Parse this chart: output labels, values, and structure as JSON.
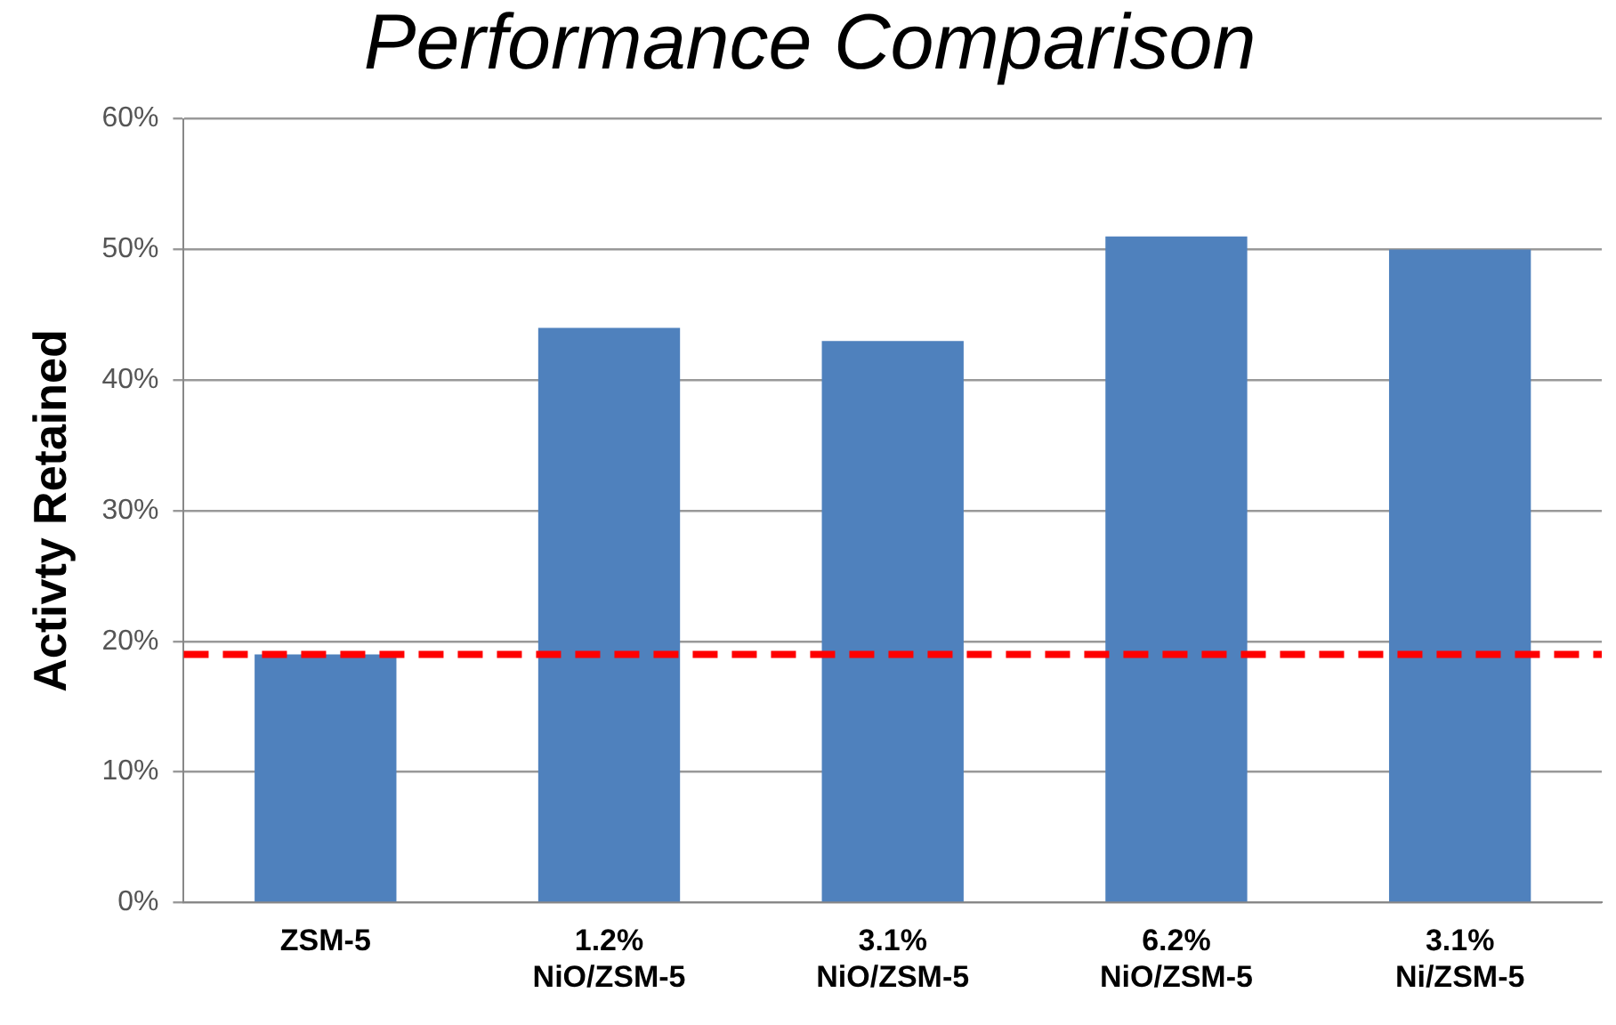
{
  "chart_data": {
    "type": "bar",
    "title": "Performance Comparison",
    "ylabel": "Activty Retained",
    "categories": [
      "ZSM-5",
      "1.2%\nNiO/ZSM-5",
      "3.1%\nNiO/ZSM-5",
      "6.2%\nNiO/ZSM-5",
      "3.1%\nNi/ZSM-5"
    ],
    "values": [
      19,
      44,
      43,
      51,
      50
    ],
    "color": "#4f81bd",
    "ylim": [
      0,
      60
    ],
    "yticks": [
      {
        "value": 0,
        "label": "0%"
      },
      {
        "value": 10,
        "label": "10%"
      },
      {
        "value": 20,
        "label": "20%"
      },
      {
        "value": 30,
        "label": "30%"
      },
      {
        "value": 40,
        "label": "40%"
      },
      {
        "value": 50,
        "label": "50%"
      },
      {
        "value": 60,
        "label": "60%"
      }
    ],
    "grid": "y",
    "legend": false,
    "ref_lines": [
      {
        "axis": "y",
        "value": 19,
        "color": "#ff0000",
        "line_style": "dashed"
      }
    ]
  }
}
